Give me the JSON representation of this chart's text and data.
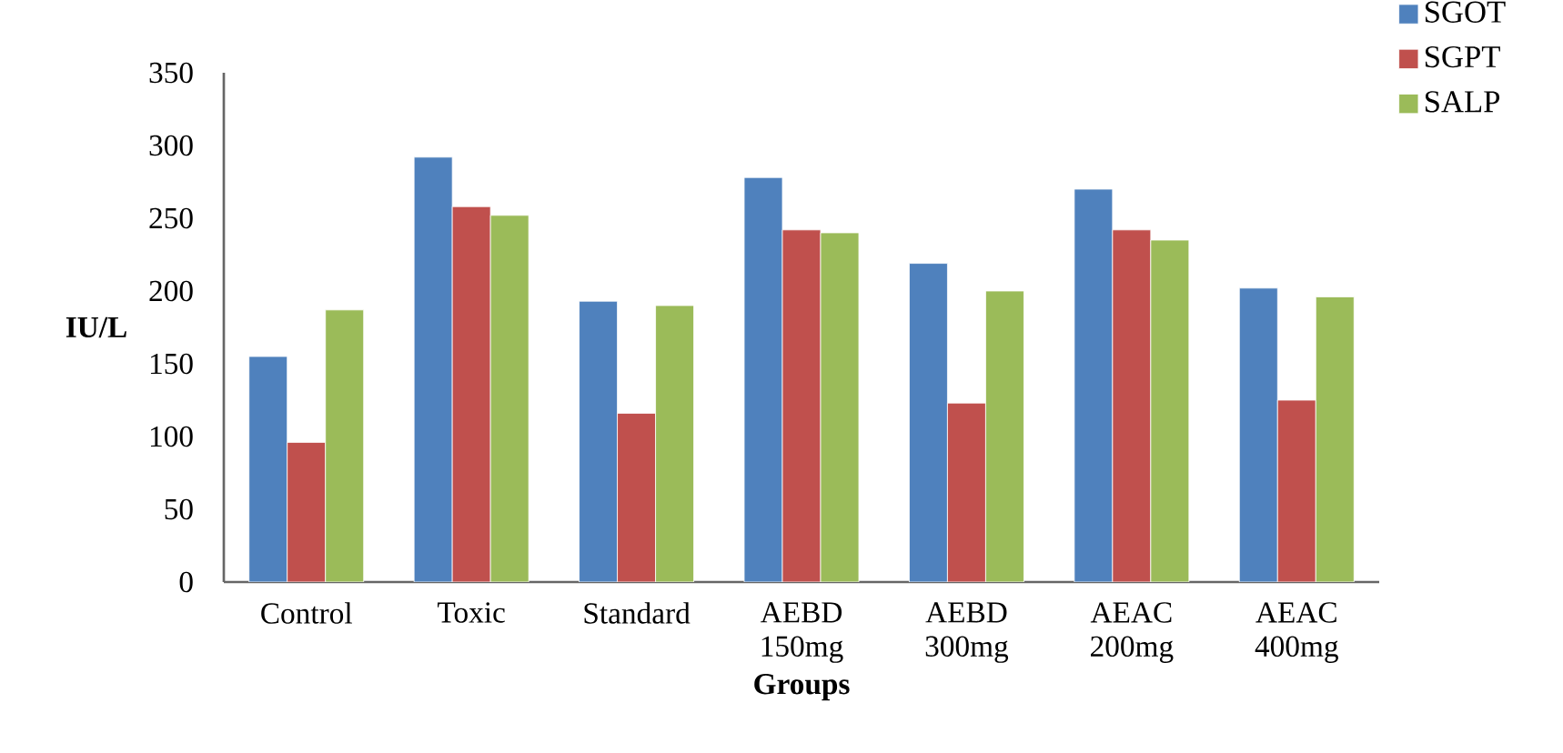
{
  "chart_data": {
    "type": "bar",
    "xlabel": "Groups",
    "ylabel": "IU/L",
    "categories": [
      "Control",
      "Toxic",
      "Standard",
      "AEBD 150mg",
      "AEBD 300mg",
      "AEAC 200mg",
      "AEAC 400mg"
    ],
    "series": [
      {
        "name": "SGOT",
        "color": "#4f81bd",
        "values": [
          155,
          292,
          193,
          278,
          219,
          270,
          202
        ]
      },
      {
        "name": "SGPT",
        "color": "#c0504d",
        "values": [
          96,
          258,
          116,
          242,
          123,
          242,
          125
        ]
      },
      {
        "name": "SALP",
        "color": "#9bbb59",
        "values": [
          187,
          252,
          190,
          240,
          200,
          235,
          196
        ]
      }
    ],
    "ylim": [
      0,
      350
    ],
    "yticks": [
      0,
      50,
      100,
      150,
      200,
      250,
      300,
      350
    ],
    "legend": "top right",
    "grid": false
  }
}
